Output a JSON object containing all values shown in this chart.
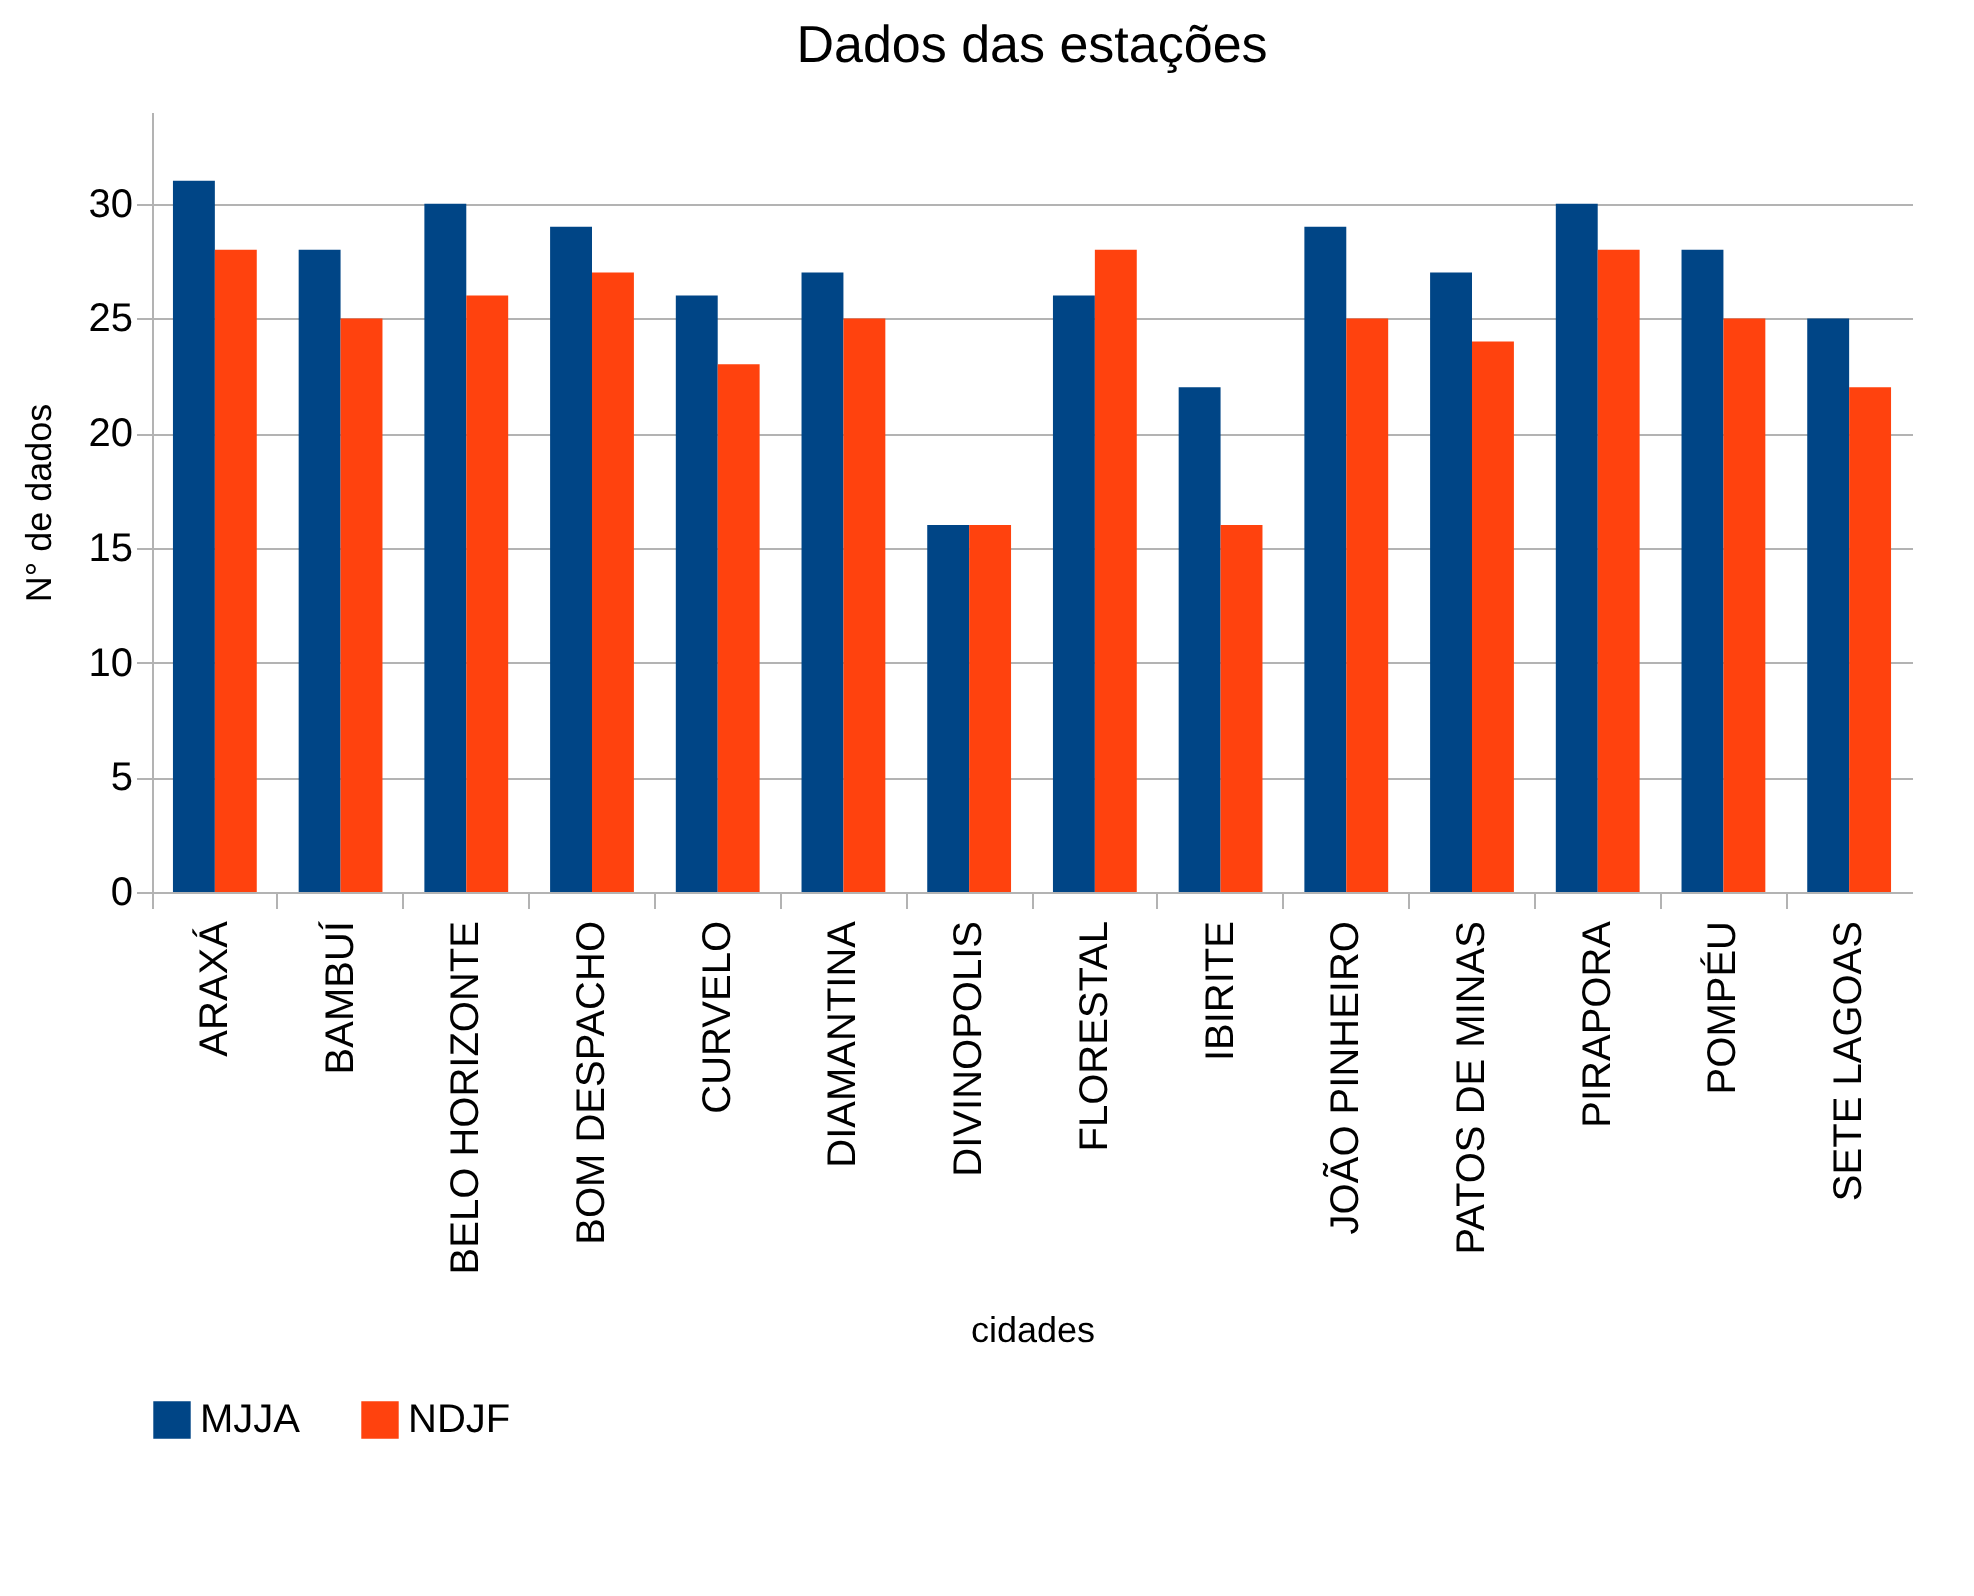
{
  "chart_data": {
    "type": "bar",
    "title": "Dados das estações",
    "xlabel": "cidades",
    "ylabel": "N° de dados",
    "categories": [
      "ARAXÁ",
      "BAMBUÍ",
      "BELO HORIZONTE",
      "BOM DESPACHO",
      "CURVELO",
      "DIAMANTINA",
      "DIVINOPOLIS",
      "FLORESTAL",
      "IBIRITE",
      "JOÃO PINHEIRO",
      "PATOS DE MINAS",
      "PIRAPORA",
      "POMPÉU",
      "SETE LAGOAS"
    ],
    "series": [
      {
        "name": "MJJA",
        "color": "#004586",
        "values": [
          31,
          28,
          30,
          29,
          26,
          27,
          16,
          26,
          22,
          29,
          27,
          30,
          28,
          25
        ]
      },
      {
        "name": "NDJF",
        "color": "#ff420e",
        "values": [
          28,
          25,
          26,
          27,
          23,
          25,
          16,
          28,
          16,
          25,
          24,
          28,
          25,
          22
        ]
      }
    ],
    "ylim": [
      0,
      34
    ],
    "yticks": [
      0,
      5,
      10,
      15,
      20,
      25,
      30
    ],
    "grid": "y",
    "legend": "bottom"
  }
}
